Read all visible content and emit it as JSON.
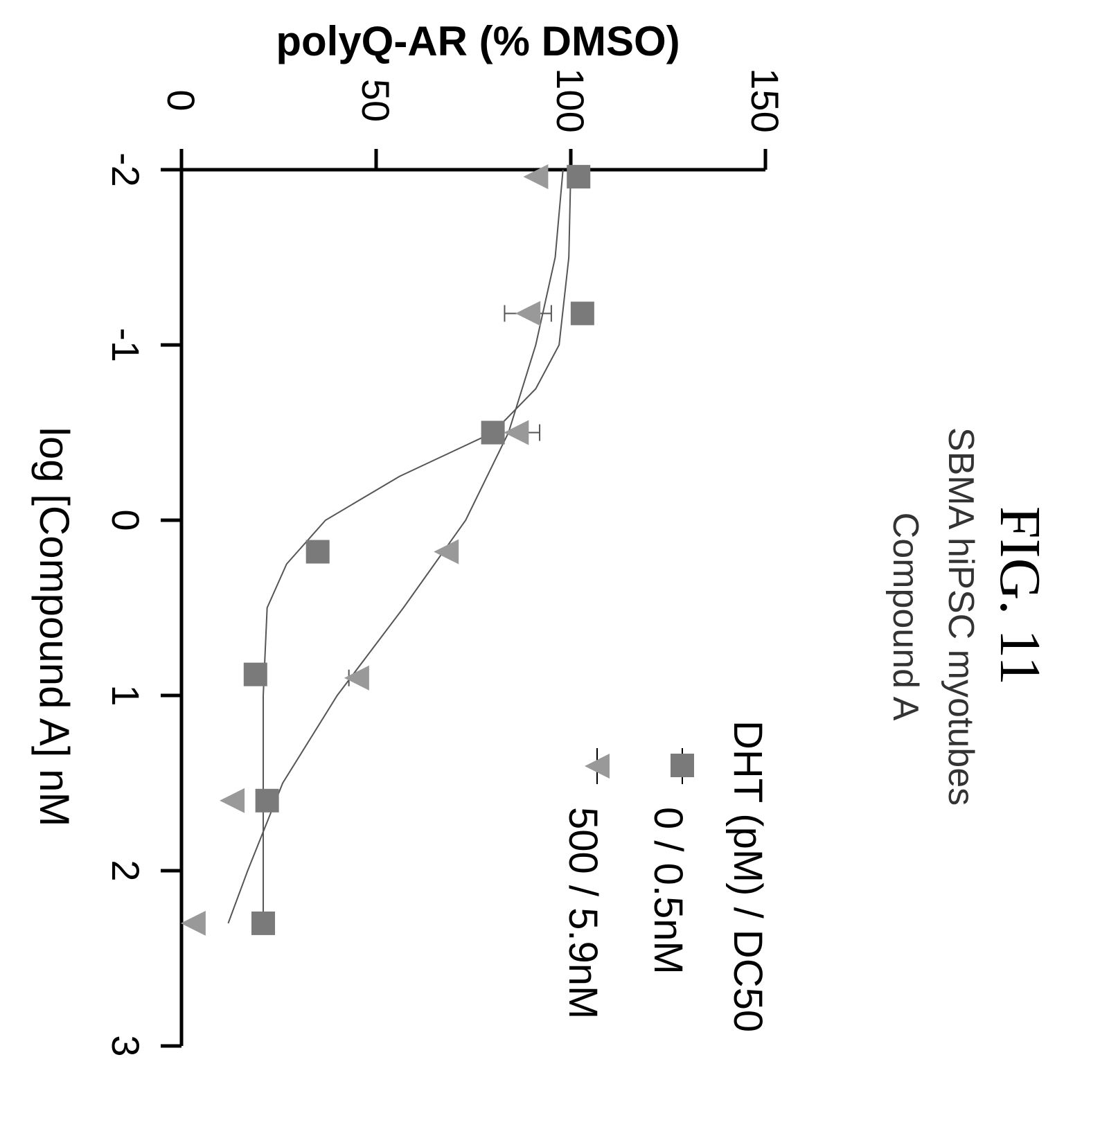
{
  "figure_label": "FIG. 11",
  "subtitle_line1": "SBMA hiPSC myotubes",
  "subtitle_line2": "Compound A",
  "legend": {
    "title": "DHT (pM) / DC50",
    "entries": [
      "0 / 0.5nM",
      "500 / 5.9nM"
    ]
  },
  "colors": {
    "square": "#7a7a7a",
    "triangle": "#999999",
    "axis": "#000000"
  },
  "chart_data": {
    "type": "scatter",
    "title": "",
    "xlabel": "log [Compound A] nM",
    "ylabel": "polyQ-AR (% DMSO)",
    "xlim": [
      -2,
      3
    ],
    "ylim": [
      0,
      150
    ],
    "x_ticks": [
      "-2",
      "-1",
      "0",
      "1",
      "2",
      "3"
    ],
    "y_ticks": [
      "0",
      "50",
      "100",
      "150"
    ],
    "series": [
      {
        "name": "0 / 0.5nM",
        "marker": "square",
        "x": [
          -1.96,
          -1.18,
          -0.5,
          0.18,
          0.88,
          1.6,
          2.3
        ],
        "y": [
          102,
          103,
          80,
          35,
          19,
          22,
          21
        ],
        "curve": [
          [
            -2,
            100
          ],
          [
            -1.5,
            99.5
          ],
          [
            -1,
            97
          ],
          [
            -0.75,
            91
          ],
          [
            -0.5,
            80
          ],
          [
            -0.25,
            56
          ],
          [
            0,
            37
          ],
          [
            0.25,
            27
          ],
          [
            0.5,
            22
          ],
          [
            1,
            21
          ],
          [
            1.5,
            21
          ],
          [
            2,
            21
          ],
          [
            2.3,
            21
          ]
        ]
      },
      {
        "name": "500 / 5.9nM",
        "marker": "triangle",
        "x": [
          -1.96,
          -1.18,
          -0.5,
          0.18,
          0.9,
          1.6,
          2.3
        ],
        "y": [
          91,
          89,
          86,
          68,
          45,
          13,
          3
        ],
        "error": [
          0,
          6,
          6,
          0,
          2,
          0,
          0
        ],
        "curve": [
          [
            -2,
            98
          ],
          [
            -1.5,
            96
          ],
          [
            -1,
            91
          ],
          [
            -0.5,
            84
          ],
          [
            0,
            73
          ],
          [
            0.5,
            57
          ],
          [
            1,
            40
          ],
          [
            1.5,
            26
          ],
          [
            2,
            17
          ],
          [
            2.3,
            12
          ]
        ]
      }
    ]
  }
}
